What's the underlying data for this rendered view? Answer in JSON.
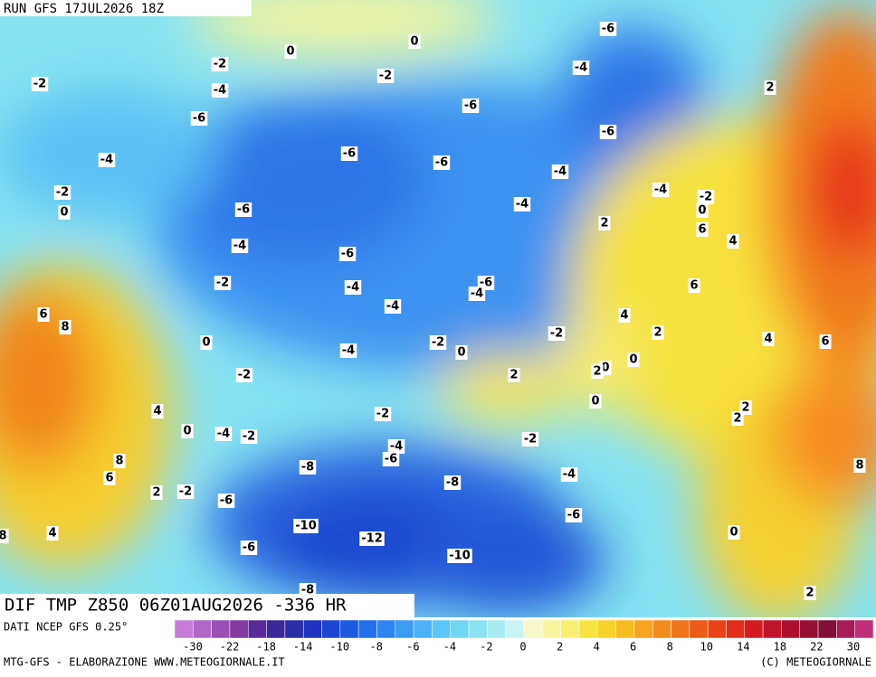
{
  "header": {
    "run": "RUN GFS 17JUL2026 18Z"
  },
  "map": {
    "title": "DIF TMP Z850 06Z01AUG2026 -336 HR",
    "labels": [
      "-6",
      "0",
      "0",
      "-2",
      "-2",
      "-4",
      "-2",
      "-4",
      "2",
      "-6",
      "-6",
      "-6",
      "-6",
      "-4",
      "-6",
      "-4",
      "-4",
      "-2",
      "-2",
      "0",
      "0",
      "-6",
      "-4",
      "2",
      "6",
      "4",
      "-4",
      "-6",
      "-6",
      "-4",
      "-2",
      "-4",
      "6",
      "-4",
      "4",
      "6",
      "8",
      "-2",
      "2",
      "4",
      "6",
      "-2",
      "0",
      "-4",
      "0",
      "0",
      "0",
      "2",
      "2",
      "-2",
      "0",
      "2",
      "2",
      "4",
      "-2",
      "0",
      "-4",
      "-2",
      "-2",
      "-4",
      "-6",
      "8",
      "8",
      "-8",
      "-4",
      "6",
      "-8",
      "2",
      "-2",
      "-6",
      "-6",
      "-10",
      "0",
      "4",
      "8",
      "-12",
      "-6",
      "-10",
      "-8",
      "2"
    ]
  },
  "legend": {
    "source": "DATI NCEP GFS 0.25°",
    "ticks": [
      "-30",
      "-22",
      "-18",
      "-14",
      "-10",
      "-8",
      "-6",
      "-4",
      "-2",
      "0",
      "2",
      "4",
      "6",
      "8",
      "10",
      "14",
      "18",
      "22",
      "30"
    ]
  },
  "footer": {
    "left": "MTG-GFS - ELABORAZIONE WWW.METEOGIORNALE.IT",
    "right": "(C) METEOGIORNALE"
  }
}
